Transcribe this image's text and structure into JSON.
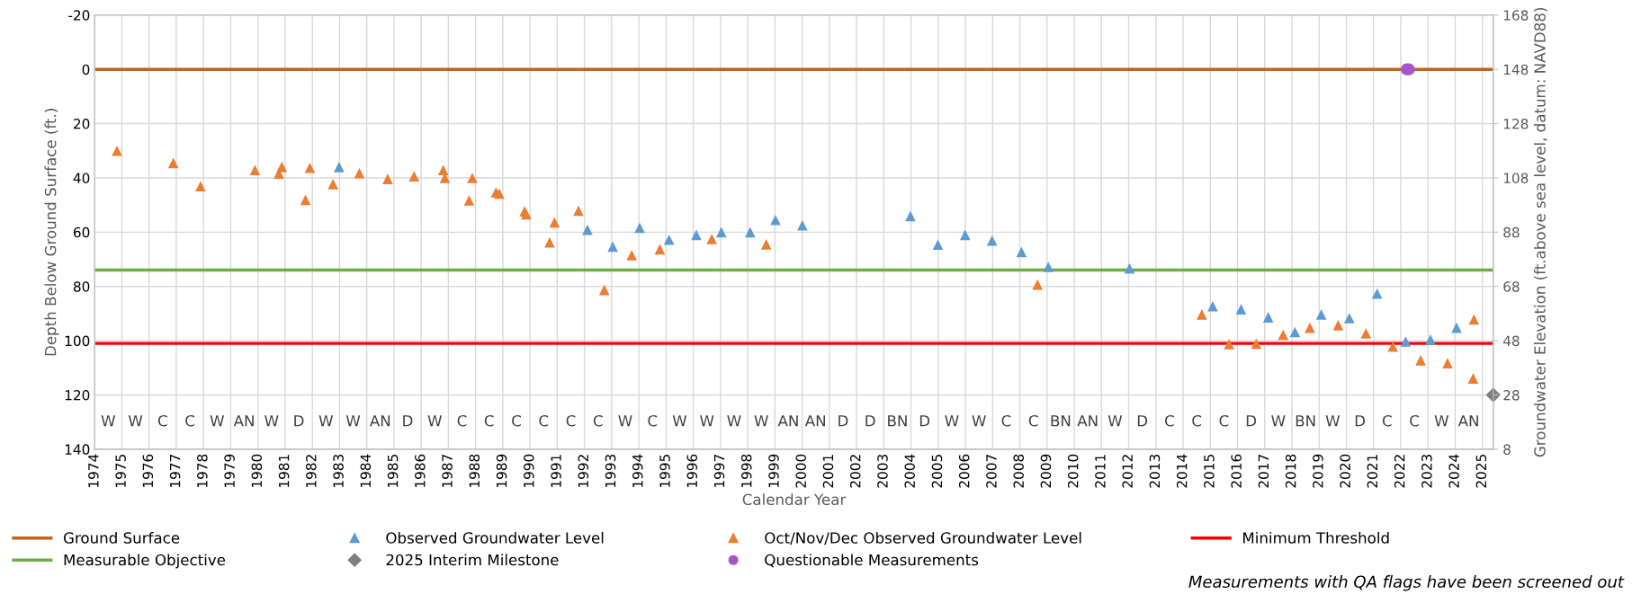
{
  "chart_data": {
    "type": "scatter",
    "xlabel": "Calendar Year",
    "ylabel": "Depth Below Ground Surface (ft.)",
    "y2label": "Groundwater Elevation (ft.above sea level, datum: NAVD88)",
    "xlim": [
      1974,
      2025.4
    ],
    "xticks": [
      1974,
      1975,
      1976,
      1977,
      1978,
      1979,
      1980,
      1981,
      1982,
      1983,
      1984,
      1985,
      1986,
      1987,
      1988,
      1989,
      1990,
      1991,
      1992,
      1993,
      1994,
      1995,
      1996,
      1997,
      1998,
      1999,
      2000,
      2001,
      2002,
      2003,
      2004,
      2005,
      2006,
      2007,
      2008,
      2009,
      2010,
      2011,
      2012,
      2013,
      2014,
      2015,
      2016,
      2017,
      2018,
      2019,
      2020,
      2021,
      2022,
      2023,
      2024,
      2025
    ],
    "ylim": [
      140,
      -20
    ],
    "yticks": [
      -20,
      0,
      20,
      40,
      60,
      80,
      100,
      120,
      140
    ],
    "y2lim": [
      8,
      168
    ],
    "y2ticks": [
      168,
      148,
      128,
      108,
      88,
      68,
      48,
      28,
      8
    ],
    "grid": true,
    "legend": "bottom",
    "series": [
      {
        "name": "Observed Groundwater Level",
        "color": "#5b9bd5",
        "marker": "triangle",
        "x": [
          1982.98,
          1992.11,
          1993.04,
          1994.03,
          1995.11,
          1996.11,
          1997.03,
          1998.09,
          1999.02,
          2000.01,
          2003.98,
          2004.99,
          2005.99,
          2006.98,
          2008.06,
          2009.05,
          2012.03,
          2015.09,
          2016.13,
          2017.13,
          2018.11,
          2019.08,
          2020.11,
          2021.13,
          2022.18,
          2023.09,
          2024.05
        ],
        "values": [
          36,
          59.1,
          65.3,
          58.4,
          62.8,
          61,
          60,
          60,
          55.5,
          57.5,
          54.1,
          64.6,
          61,
          63.1,
          67.3,
          72.8,
          73.4,
          87.3,
          88.4,
          91.4,
          96.8,
          90.3,
          91.7,
          82.6,
          100.3,
          99.6,
          95.2
        ]
      },
      {
        "name": "Oct/Nov/Dec Observed Groundwater Level",
        "color": "#ed7d31",
        "marker": "triangle",
        "x": [
          1974.82,
          1976.89,
          1977.89,
          1979.89,
          1980.88,
          1980.77,
          1981.91,
          1981.75,
          1982.76,
          1983.73,
          1984.77,
          1985.74,
          1986.81,
          1986.87,
          1987.88,
          1987.76,
          1988.75,
          1988.87,
          1989.8,
          1989.86,
          1990.9,
          1990.72,
          1991.78,
          1992.73,
          1993.74,
          1994.77,
          1996.68,
          1998.68,
          2008.65,
          2014.69,
          2015.69,
          2016.69,
          2017.68,
          2018.66,
          2019.7,
          2020.72,
          2021.71,
          2022.73,
          2023.72,
          2024.69,
          2024.66
        ],
        "values": [
          30,
          34.5,
          43.1,
          37.1,
          35.9,
          38.4,
          36.3,
          48.1,
          42.3,
          38.3,
          40.4,
          39.4,
          37.1,
          40,
          40,
          48.3,
          45.3,
          45.8,
          52.3,
          53.4,
          56.4,
          63.8,
          52.1,
          81.3,
          68.5,
          66.3,
          62.5,
          64.5,
          79.3,
          90.3,
          101.3,
          101.1,
          97.8,
          95.2,
          94.3,
          97.3,
          102.2,
          107.2,
          108.3,
          92.2,
          113.9
        ]
      },
      {
        "name": "2025 Interim Milestone",
        "color": "#7f7f7f",
        "marker": "diamond",
        "x": [
          2025.4
        ],
        "values": [
          120
        ]
      },
      {
        "name": "Questionable Measurements",
        "color": "#a855c8",
        "marker": "circle",
        "x": [
          2022.22,
          2022.3
        ],
        "values": [
          0,
          0
        ]
      }
    ],
    "ref_lines": [
      {
        "axis": "y",
        "value": 0,
        "label": "Ground Surface",
        "color": "#c0651a"
      },
      {
        "axis": "y",
        "value": 101,
        "label": "Minimum Threshold",
        "color": "#ff0000"
      },
      {
        "axis": "y",
        "value": 74,
        "label": "Measurable Objective",
        "color": "#70ad47"
      }
    ],
    "annotations": [
      "W",
      "W",
      "C",
      "C",
      "W",
      "AN",
      "W",
      "D",
      "W",
      "W",
      "AN",
      "D",
      "W",
      "C",
      "C",
      "C",
      "C",
      "C",
      "C",
      "W",
      "C",
      "W",
      "W",
      "W",
      "W",
      "AN",
      "AN",
      "D",
      "D",
      "BN",
      "D",
      "W",
      "W",
      "C",
      "C",
      "BN",
      "AN",
      "W",
      "D",
      "C",
      "C",
      "C",
      "D",
      "W",
      "BN",
      "W",
      "D",
      "C",
      "C",
      "W",
      "AN",
      "Measurements with QA flags have been screened out"
    ]
  }
}
